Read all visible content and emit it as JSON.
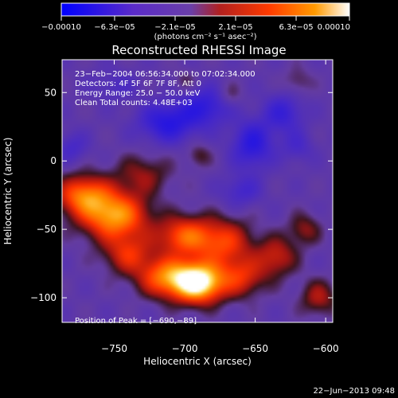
{
  "chart_data": {
    "type": "heatmap",
    "title": "Reconstructed RHESSI Image",
    "xlabel": "Heliocentric X (arcsec)",
    "ylabel": "Heliocentric Y (arcsec)",
    "xlim": [
      -787,
      -595
    ],
    "ylim": [
      -118,
      74
    ],
    "xticks": [
      -750,
      -700,
      -650,
      -600
    ],
    "xtick_labels": [
      "−750",
      "−700",
      "−650",
      "−600"
    ],
    "yticks": [
      50,
      0,
      -50,
      -100
    ],
    "ytick_labels": [
      "50",
      "0",
      "−50",
      "−100"
    ],
    "colorbar": {
      "range": [
        -0.0001,
        0.0001
      ],
      "ticks": [
        -0.0001,
        -6.3e-05,
        -2.1e-05,
        2.1e-05,
        6.3e-05,
        0.0001
      ],
      "tick_labels": [
        "−0.00010",
        "−6.3e−05",
        "−2.1e−05",
        "2.1e−05",
        "6.3e−05",
        "0.00010"
      ],
      "unit_label": "(photons cm⁻² s⁻¹ asec⁻²)",
      "colors": [
        "#0000ff",
        "#5a2bc8",
        "#6a3fa8",
        "#b1201f",
        "#ff3a00",
        "#ff9a00",
        "#ffffff"
      ]
    },
    "annotations": [
      "23−Feb−2004 06:56:34.000  to  07:02:34.000",
      "Detectors: 4F 5F 6F 7F 8F, Att 0",
      "Energy Range: 25.0 − 50.0 keV",
      "Clean      Total counts: 4.48E+03"
    ],
    "peak_label": "Position of Peak = [−690,−89]",
    "peak": {
      "x": -690,
      "y": -89
    },
    "sources": [
      {
        "x": -772,
        "y": -25,
        "amp": 0.6,
        "sx": 13,
        "sy": 10
      },
      {
        "x": -750,
        "y": -40,
        "amp": 0.75,
        "sx": 16,
        "sy": 12
      },
      {
        "x": -730,
        "y": -10,
        "amp": 0.25,
        "sx": 14,
        "sy": 10
      },
      {
        "x": -740,
        "y": -68,
        "amp": 0.4,
        "sx": 12,
        "sy": 10
      },
      {
        "x": -712,
        "y": -85,
        "amp": 0.65,
        "sx": 14,
        "sy": 10
      },
      {
        "x": -690,
        "y": -89,
        "amp": 1.0,
        "sx": 12,
        "sy": 10
      },
      {
        "x": -700,
        "y": -55,
        "amp": 0.55,
        "sx": 14,
        "sy": 10
      },
      {
        "x": -672,
        "y": -60,
        "amp": 0.45,
        "sx": 14,
        "sy": 12
      },
      {
        "x": -660,
        "y": -85,
        "amp": 0.4,
        "sx": 12,
        "sy": 10
      },
      {
        "x": -635,
        "y": -70,
        "amp": 0.35,
        "sx": 10,
        "sy": 10
      },
      {
        "x": -615,
        "y": -50,
        "amp": 0.25,
        "sx": 8,
        "sy": 8
      },
      {
        "x": -605,
        "y": -100,
        "amp": 0.3,
        "sx": 9,
        "sy": 9
      },
      {
        "x": -690,
        "y": 4,
        "amp": 0.18,
        "sx": 6,
        "sy": 6
      },
      {
        "x": -668,
        "y": 48,
        "amp": 0.15,
        "sx": 6,
        "sy": 6
      },
      {
        "x": -620,
        "y": 58,
        "amp": 0.15,
        "sx": 7,
        "sy": 7
      },
      {
        "x": -700,
        "y": 58,
        "amp": 0.12,
        "sx": 6,
        "sy": 6
      },
      {
        "x": -780,
        "y": 10,
        "amp": -0.2,
        "sx": 8,
        "sy": 8
      },
      {
        "x": -712,
        "y": 28,
        "amp": -0.42,
        "sx": 14,
        "sy": 10
      },
      {
        "x": -685,
        "y": 40,
        "amp": -0.35,
        "sx": 12,
        "sy": 10
      },
      {
        "x": -652,
        "y": 12,
        "amp": -0.4,
        "sx": 10,
        "sy": 12
      },
      {
        "x": -660,
        "y": -22,
        "amp": -0.22,
        "sx": 10,
        "sy": 8
      },
      {
        "x": -630,
        "y": 35,
        "amp": -0.3,
        "sx": 10,
        "sy": 10
      },
      {
        "x": -620,
        "y": 10,
        "amp": -0.18,
        "sx": 8,
        "sy": 8
      },
      {
        "x": -750,
        "y": 55,
        "amp": -0.15,
        "sx": 12,
        "sy": 8
      }
    ],
    "grid": false,
    "legend": "none"
  },
  "footer": {
    "timestamp": "22−Jun−2013 09:48"
  }
}
